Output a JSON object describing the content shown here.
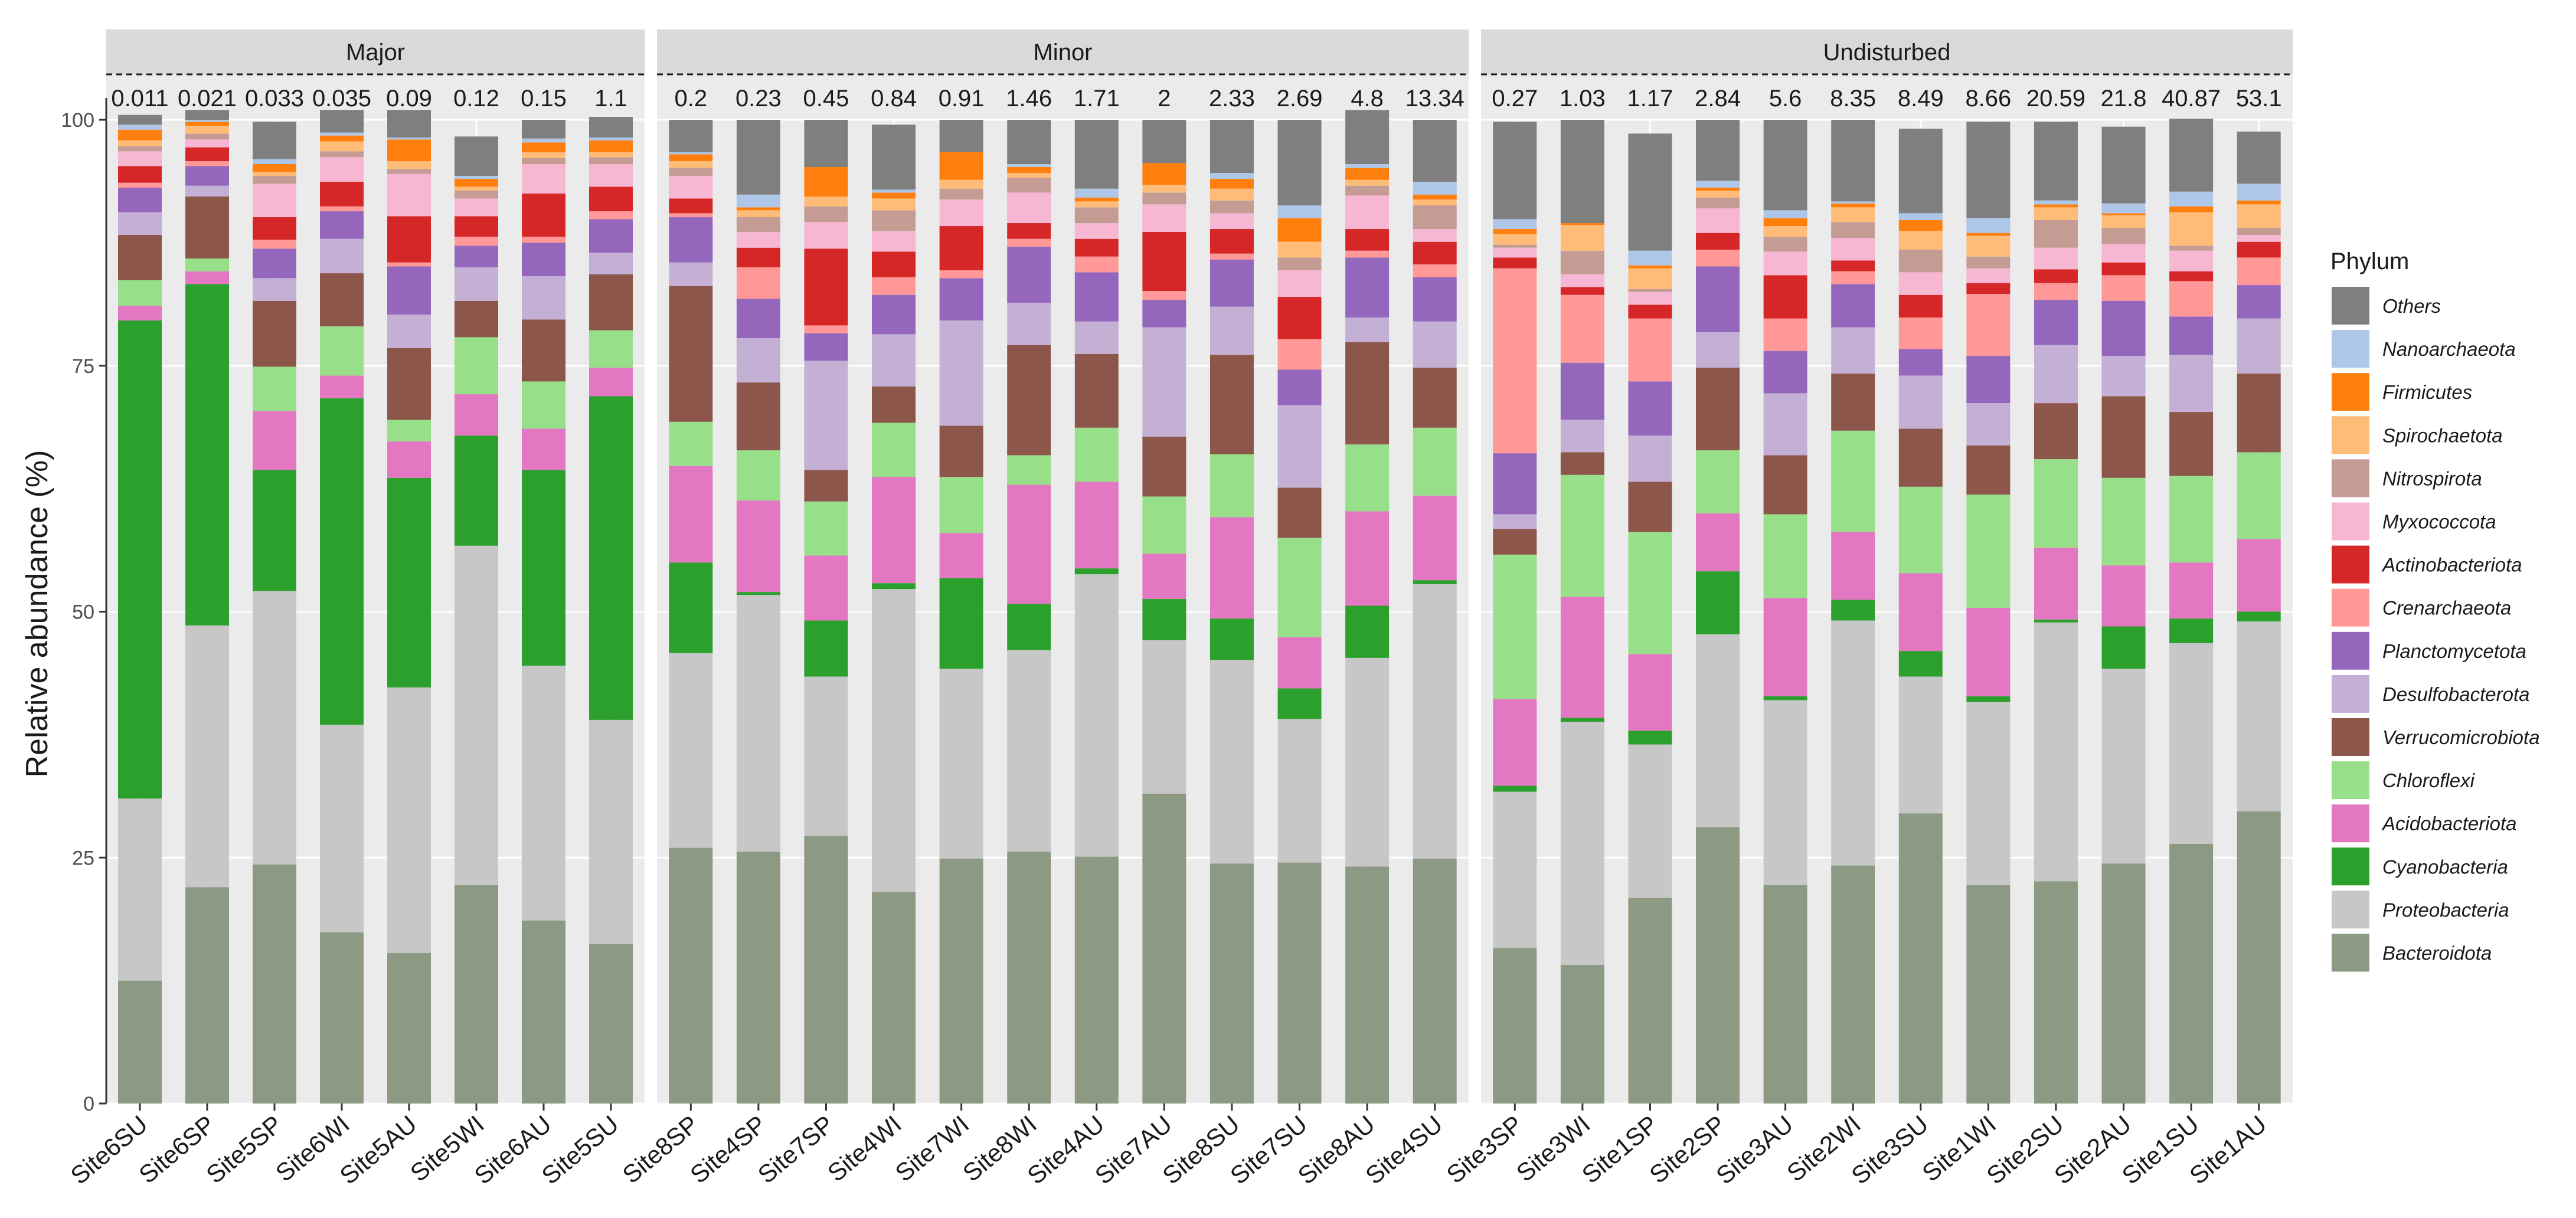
{
  "chart_data": {
    "type": "bar",
    "stacked": true,
    "ylabel": "Relative abundance (%)",
    "ylim": [
      0,
      100
    ],
    "yticks": [
      0,
      25,
      50,
      75,
      100
    ],
    "legend_title": "Phylum",
    "legend_position": "right",
    "phyla": [
      {
        "name": "Bacteroidota",
        "color": "#8c9a84"
      },
      {
        "name": "Proteobacteria",
        "color": "#c7c7c7"
      },
      {
        "name": "Cyanobacteria",
        "color": "#2ca02c"
      },
      {
        "name": "Acidobacteriota",
        "color": "#e377c2"
      },
      {
        "name": "Chloroflexi",
        "color": "#98df8a"
      },
      {
        "name": "Verrucomicrobiota",
        "color": "#8c564b"
      },
      {
        "name": "Desulfobacterota",
        "color": "#c5b0d5"
      },
      {
        "name": "Planctomycetota",
        "color": "#9467bd"
      },
      {
        "name": "Crenarchaeota",
        "color": "#ff9896"
      },
      {
        "name": "Actinobacteriota",
        "color": "#d62728"
      },
      {
        "name": "Myxococcota",
        "color": "#f7b6d2"
      },
      {
        "name": "Nitrospirota",
        "color": "#c49c94"
      },
      {
        "name": "Spirochaetota",
        "color": "#ffbb78"
      },
      {
        "name": "Firmicutes",
        "color": "#ff7f0e"
      },
      {
        "name": "Nanoarchaeota",
        "color": "#aec7e8"
      },
      {
        "name": "Others",
        "color": "#7f7f7f"
      }
    ],
    "panels": [
      {
        "label": "Major",
        "samples": [
          {
            "name": "Site6SU",
            "label": "0.011",
            "values": [
              12.5,
              18.5,
              48.6,
              1.5,
              2.6,
              4.6,
              2.3,
              2.5,
              0.5,
              1.7,
              1.5,
              0.5,
              0.6,
              1.1,
              0.5,
              1.0
            ]
          },
          {
            "name": "Site6SP",
            "label": "0.021",
            "values": [
              22.0,
              26.6,
              34.7,
              1.3,
              1.3,
              6.3,
              1.1,
              2.0,
              0.5,
              1.4,
              0.8,
              0.6,
              0.8,
              0.4,
              0.2,
              1.0
            ]
          },
          {
            "name": "Site5SP",
            "label": "0.033",
            "values": [
              24.3,
              27.8,
              12.3,
              6.0,
              4.5,
              6.7,
              2.3,
              3.0,
              0.9,
              2.3,
              3.4,
              0.8,
              0.4,
              0.8,
              0.5,
              3.8
            ]
          },
          {
            "name": "Site6WI",
            "label": "0.035",
            "values": [
              17.4,
              21.1,
              33.2,
              2.3,
              5.0,
              5.4,
              3.5,
              2.8,
              0.5,
              2.5,
              2.5,
              0.6,
              1.0,
              0.6,
              0.3,
              2.3
            ]
          },
          {
            "name": "Site5AU",
            "label": "0.09",
            "values": [
              15.3,
              27.0,
              21.3,
              3.7,
              2.2,
              7.3,
              3.4,
              4.9,
              0.4,
              4.7,
              4.3,
              0.5,
              0.8,
              2.2,
              0.2,
              2.8
            ]
          },
          {
            "name": "Site5WI",
            "label": "0.12",
            "values": [
              22.2,
              34.5,
              11.2,
              4.2,
              5.8,
              3.7,
              3.4,
              2.2,
              0.9,
              2.1,
              1.8,
              0.8,
              0.4,
              0.8,
              0.3,
              4.0
            ]
          },
          {
            "name": "Site6AU",
            "label": "0.15",
            "values": [
              18.6,
              25.9,
              19.9,
              4.2,
              4.8,
              6.3,
              4.4,
              3.4,
              0.6,
              4.4,
              3.0,
              0.6,
              0.6,
              1.0,
              0.4,
              1.9
            ]
          },
          {
            "name": "Site5SU",
            "label": "1.1",
            "values": [
              16.2,
              22.8,
              32.9,
              2.9,
              3.8,
              5.7,
              2.2,
              3.4,
              0.8,
              2.5,
              2.3,
              0.7,
              0.5,
              1.2,
              0.3,
              2.1
            ]
          }
        ]
      },
      {
        "label": "Minor",
        "samples": [
          {
            "name": "Site8SP",
            "label": "0.2",
            "values": [
              26.0,
              19.8,
              9.2,
              9.8,
              4.5,
              13.8,
              2.4,
              4.6,
              0.4,
              1.5,
              2.3,
              0.8,
              0.7,
              0.7,
              0.2,
              3.3
            ]
          },
          {
            "name": "Site4SP",
            "label": "0.23",
            "values": [
              25.6,
              26.1,
              0.3,
              9.3,
              5.1,
              6.9,
              4.5,
              4.0,
              3.2,
              2.0,
              1.6,
              1.5,
              0.7,
              0.3,
              1.3,
              7.6
            ]
          },
          {
            "name": "Site7SP",
            "label": "0.45",
            "values": [
              27.2,
              16.2,
              5.7,
              6.6,
              5.5,
              3.2,
              11.1,
              2.8,
              0.8,
              7.8,
              2.7,
              1.6,
              1.0,
              3.0,
              0.0,
              4.8
            ]
          },
          {
            "name": "Site4WI",
            "label": "0.84",
            "values": [
              21.5,
              30.8,
              0.6,
              10.8,
              5.5,
              3.7,
              5.3,
              4.0,
              1.8,
              2.6,
              2.1,
              2.1,
              1.2,
              0.6,
              0.3,
              6.6
            ]
          },
          {
            "name": "Site7WI",
            "label": "0.91",
            "values": [
              24.9,
              19.3,
              9.2,
              4.6,
              5.7,
              5.2,
              10.7,
              4.3,
              0.8,
              4.5,
              2.7,
              1.1,
              0.9,
              2.8,
              0.0,
              3.3
            ]
          },
          {
            "name": "Site8WI",
            "label": "1.46",
            "values": [
              25.6,
              20.5,
              4.7,
              12.1,
              3.0,
              11.2,
              4.3,
              5.7,
              0.8,
              1.6,
              3.1,
              1.5,
              0.5,
              0.6,
              0.3,
              4.5
            ]
          },
          {
            "name": "Site4AU",
            "label": "1.71",
            "values": [
              25.1,
              28.7,
              0.6,
              8.8,
              5.5,
              7.5,
              3.3,
              5.0,
              1.6,
              1.8,
              1.6,
              1.6,
              0.6,
              0.4,
              0.9,
              7.0
            ]
          },
          {
            "name": "Site7AU",
            "label": "2",
            "values": [
              31.5,
              15.6,
              4.2,
              4.6,
              5.8,
              6.1,
              11.1,
              2.8,
              0.9,
              6.0,
              2.8,
              1.2,
              0.8,
              2.2,
              0.0,
              4.4
            ]
          },
          {
            "name": "Site8SU",
            "label": "2.33",
            "values": [
              24.4,
              20.7,
              4.2,
              10.3,
              6.4,
              10.1,
              4.9,
              4.8,
              0.6,
              2.5,
              1.6,
              1.3,
              1.2,
              1.0,
              0.6,
              5.4
            ]
          },
          {
            "name": "Site7SU",
            "label": "2.69",
            "values": [
              24.5,
              14.6,
              3.1,
              5.2,
              10.1,
              5.1,
              8.4,
              3.6,
              3.1,
              4.3,
              2.7,
              1.3,
              1.6,
              2.4,
              1.3,
              8.7
            ]
          },
          {
            "name": "Site8AU",
            "label": "4.8",
            "values": [
              24.1,
              21.2,
              5.3,
              9.6,
              6.8,
              10.4,
              2.5,
              6.1,
              0.7,
              2.2,
              3.4,
              1.0,
              0.6,
              1.2,
              0.4,
              5.5
            ]
          },
          {
            "name": "Site4SU",
            "label": "13.34",
            "values": [
              24.9,
              27.9,
              0.4,
              8.6,
              6.9,
              6.1,
              4.7,
              4.5,
              1.3,
              2.3,
              1.3,
              2.4,
              0.6,
              0.5,
              1.3,
              6.3
            ]
          }
        ]
      },
      {
        "label": "Undisturbed",
        "samples": [
          {
            "name": "Site3SP",
            "label": "0.27",
            "values": [
              15.8,
              15.9,
              0.6,
              8.8,
              14.7,
              2.6,
              1.5,
              6.2,
              18.8,
              1.1,
              1.0,
              0.3,
              1.1,
              0.5,
              1.0,
              9.9
            ]
          },
          {
            "name": "Site3WI",
            "label": "1.03",
            "values": [
              14.1,
              24.7,
              0.4,
              12.3,
              12.4,
              2.3,
              3.3,
              5.8,
              6.9,
              0.8,
              1.3,
              2.4,
              2.6,
              0.2,
              0.0,
              10.5
            ]
          },
          {
            "name": "Site1SP",
            "label": "1.17",
            "values": [
              20.9,
              15.6,
              1.4,
              7.8,
              12.4,
              5.1,
              4.7,
              5.5,
              6.4,
              1.4,
              1.3,
              0.3,
              2.1,
              0.3,
              1.5,
              11.9
            ]
          },
          {
            "name": "Site2SP",
            "label": "2.84",
            "values": [
              28.1,
              19.6,
              6.4,
              5.9,
              6.4,
              8.4,
              3.6,
              6.7,
              1.7,
              1.7,
              2.5,
              1.1,
              0.7,
              0.3,
              0.7,
              6.2
            ]
          },
          {
            "name": "Site3AU",
            "label": "5.6",
            "values": [
              22.2,
              18.8,
              0.4,
              10.0,
              8.5,
              6.0,
              6.3,
              4.3,
              3.3,
              4.4,
              2.4,
              1.5,
              1.1,
              0.8,
              0.8,
              9.2
            ]
          },
          {
            "name": "Site2WI",
            "label": "8.35",
            "values": [
              24.2,
              24.9,
              2.1,
              6.9,
              10.3,
              5.8,
              4.7,
              4.4,
              1.3,
              1.1,
              2.3,
              1.6,
              1.5,
              0.4,
              0.2,
              8.3
            ]
          },
          {
            "name": "Site3SU",
            "label": "8.49",
            "values": [
              29.5,
              13.9,
              2.6,
              7.9,
              8.8,
              5.9,
              5.4,
              2.7,
              3.2,
              2.3,
              2.3,
              2.3,
              1.9,
              1.1,
              0.7,
              8.6
            ]
          },
          {
            "name": "Site1WI",
            "label": "8.66",
            "values": [
              22.2,
              18.6,
              0.6,
              9.0,
              11.5,
              5.0,
              4.3,
              4.8,
              6.3,
              1.1,
              1.5,
              1.2,
              2.1,
              0.3,
              1.5,
              9.8
            ]
          },
          {
            "name": "Site2SU",
            "label": "20.59",
            "values": [
              22.6,
              26.3,
              0.3,
              7.3,
              9.0,
              5.7,
              5.9,
              4.6,
              1.7,
              1.4,
              2.2,
              2.8,
              1.3,
              0.3,
              0.4,
              8.0
            ]
          },
          {
            "name": "Site2AU",
            "label": "21.8",
            "values": [
              24.4,
              19.8,
              4.3,
              6.2,
              8.9,
              8.3,
              4.1,
              5.6,
              2.6,
              1.3,
              1.9,
              1.6,
              1.3,
              0.2,
              1.0,
              7.8
            ]
          },
          {
            "name": "Site1SU",
            "label": "40.87",
            "values": [
              26.4,
              20.4,
              2.5,
              5.7,
              8.8,
              6.5,
              5.8,
              3.9,
              3.6,
              1.0,
              2.1,
              0.5,
              3.4,
              0.6,
              1.5,
              7.4
            ]
          },
          {
            "name": "Site1AU",
            "label": "53.1",
            "values": [
              29.7,
              19.3,
              1.0,
              7.4,
              8.8,
              8.0,
              5.6,
              3.4,
              2.8,
              1.6,
              0.7,
              0.7,
              2.4,
              0.4,
              1.7,
              5.3
            ]
          }
        ]
      }
    ]
  }
}
